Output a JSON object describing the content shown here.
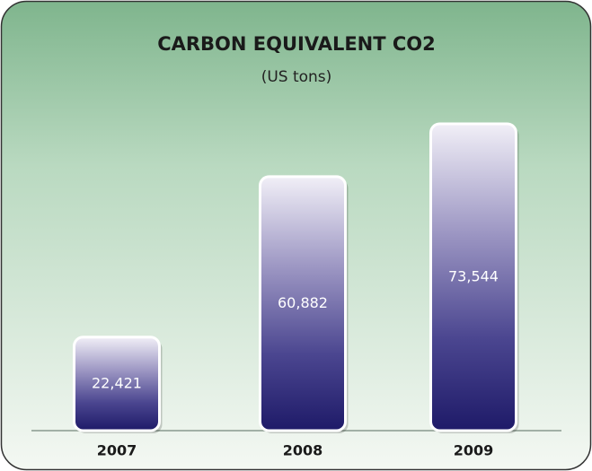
{
  "chart_data": {
    "type": "bar",
    "title": "CARBON EQUIVALENT CO2",
    "subtitle": "(US tons)",
    "categories": [
      "2007",
      "2008",
      "2009"
    ],
    "values": [
      22421,
      60882,
      73544
    ],
    "value_labels": [
      "22,421",
      "60,882",
      "73,544"
    ],
    "color": "#2a2470"
  }
}
